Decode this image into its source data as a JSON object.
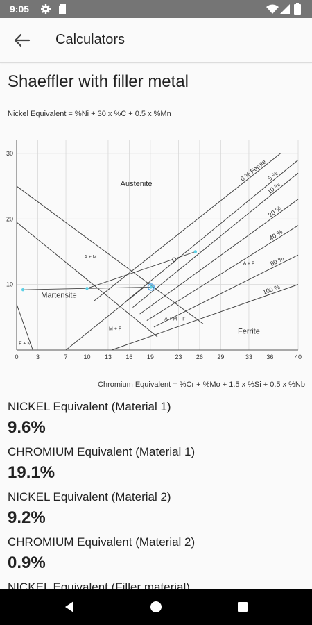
{
  "status_bar": {
    "time": "9:05",
    "icons": [
      "gear-icon",
      "sd-card-icon",
      "wifi-icon",
      "cellular-icon",
      "battery-icon"
    ]
  },
  "app_bar": {
    "title": "Calculators",
    "back_icon": "arrow-back-icon"
  },
  "page": {
    "heading": "Shaeffler with filler metal",
    "nickel_formula": "Nickel Equivalent = %Ni + 30 x %C + 0.5 x %Mn",
    "chromium_formula": "Chromium Equivalent = %Cr + %Mo + 1.5 x %Si + 0.5 x %Nb"
  },
  "chart_data": {
    "type": "line",
    "title": "",
    "xlabel": "Chromium Equivalent = %Cr + %Mo + 1.5 x %Si + 0.5 x %Nb",
    "ylabel": "Nickel Equivalent = %Ni + 30 x %C + 0.5 x %Mn",
    "xlim": [
      0,
      40
    ],
    "ylim": [
      0,
      32
    ],
    "grid": true,
    "x_ticks": [
      "0",
      "3",
      "7",
      "10",
      "13",
      "16",
      "19",
      "23",
      "26",
      "29",
      "33",
      "36",
      "40"
    ],
    "y_ticks": [
      "10",
      "20",
      "30"
    ],
    "region_labels": [
      {
        "text": "Austenite",
        "x": 17,
        "y": 25
      },
      {
        "text": "Martensite",
        "x": 6,
        "y": 8
      },
      {
        "text": "Ferrite",
        "x": 33,
        "y": 2.5
      },
      {
        "text": "A + M",
        "x": 10.5,
        "y": 14
      },
      {
        "text": "A + F",
        "x": 33,
        "y": 13
      },
      {
        "text": "M + F",
        "x": 14,
        "y": 3
      },
      {
        "text": "A + M + F",
        "x": 22.5,
        "y": 4.5
      },
      {
        "text": "F + M",
        "x": 1.2,
        "y": 0.8
      }
    ],
    "ferrite_lines": [
      {
        "label": "0 % Ferrite",
        "x1": 11,
        "y1": 7.5,
        "x2": 37.5,
        "y2": 30
      },
      {
        "label": "5 %",
        "x1": 15.6,
        "y1": 7.5,
        "x2": 40,
        "y2": 29
      },
      {
        "label": "10 %",
        "x1": 16.5,
        "y1": 6.5,
        "x2": 40,
        "y2": 27
      },
      {
        "label": "20 %",
        "x1": 17.5,
        "y1": 5.5,
        "x2": 40,
        "y2": 23
      },
      {
        "label": "40 %",
        "x1": 18.5,
        "y1": 4.5,
        "x2": 40,
        "y2": 19
      },
      {
        "label": "80 %",
        "x1": 19.5,
        "y1": 3.5,
        "x2": 40,
        "y2": 14.5
      },
      {
        "label": "100 %",
        "x1": 13.5,
        "y1": 0,
        "x2": 40,
        "y2": 10
      }
    ],
    "boundary_lines": [
      {
        "name": "austenite-boundary",
        "x1": 0,
        "y1": 25,
        "x2": 26.5,
        "y2": 4
      },
      {
        "name": "martensite-boundary",
        "x1": 0,
        "y1": 19.5,
        "x2": 20,
        "y2": 2
      },
      {
        "name": "martensite-ferrite-boundary",
        "x1": 7,
        "y1": 0,
        "x2": 18,
        "y2": 9.5
      },
      {
        "name": "ferrite-martensite-boundary",
        "x1": 0,
        "y1": 7,
        "x2": 2.3,
        "y2": 0
      }
    ],
    "tie_lines": [
      {
        "name": "material-tie-line",
        "x1": 0.9,
        "y1": 9.2,
        "x2": 19.1,
        "y2": 9.6
      },
      {
        "name": "filler-tie-line",
        "x1": 10,
        "y1": 9.4,
        "x2": 25.4,
        "y2": 15
      }
    ],
    "points": [
      {
        "name": "material-1",
        "x": 19.1,
        "y": 9.6,
        "style": "filled"
      },
      {
        "name": "material-2",
        "x": 0.9,
        "y": 9.2,
        "style": "filled"
      },
      {
        "name": "filler-metal",
        "x": 25.4,
        "y": 15,
        "style": "filled"
      },
      {
        "name": "dilution-point",
        "x": 10,
        "y": 9.4,
        "style": "filled"
      },
      {
        "name": "material-mix",
        "x": 19.1,
        "y": 9.6,
        "style": "ring"
      },
      {
        "name": "weld-point",
        "x": 22.4,
        "y": 13.8,
        "style": "open"
      }
    ]
  },
  "results": [
    {
      "label": "NICKEL Equivalent (Material 1)",
      "value": "9.6%"
    },
    {
      "label": "CHROMIUM Equivalent (Material 1)",
      "value": "19.1%"
    },
    {
      "label": "NICKEL Equivalent (Material 2)",
      "value": "9.2%"
    },
    {
      "label": "CHROMIUM Equivalent (Material 2)",
      "value": "0.9%"
    },
    {
      "label": "NICKEL Equivalent (Filler material)",
      "value": ""
    }
  ],
  "nav_bar": {
    "icons": [
      "back-triangle-icon",
      "home-circle-icon",
      "recents-square-icon"
    ]
  }
}
